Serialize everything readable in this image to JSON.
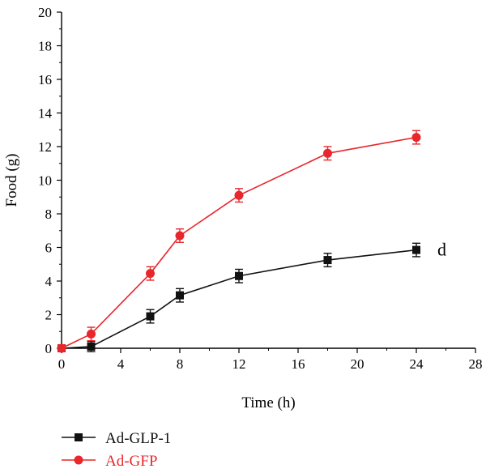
{
  "chart_data": {
    "type": "line",
    "title": "",
    "xlabel": "Time (h)",
    "ylabel": "Food (g)",
    "xlim": [
      0,
      28
    ],
    "ylim": [
      0,
      20
    ],
    "xticks": [
      0,
      4,
      8,
      12,
      16,
      20,
      24,
      28
    ],
    "yticks": [
      0,
      2,
      4,
      6,
      8,
      10,
      12,
      14,
      16,
      18,
      20
    ],
    "grid": false,
    "legend_position": "bottom-left, below plot",
    "x": [
      0,
      2,
      6,
      8,
      12,
      18,
      24
    ],
    "series": [
      {
        "name": "Ad-GLP-1",
        "color": "#111111",
        "marker": "square",
        "values": [
          0.0,
          0.1,
          1.9,
          3.15,
          4.3,
          5.25,
          5.85
        ],
        "errors": [
          0.2,
          0.3,
          0.4,
          0.4,
          0.4,
          0.4,
          0.4
        ]
      },
      {
        "name": "Ad-GFP",
        "color": "#e8262b",
        "marker": "circle",
        "values": [
          0.0,
          0.85,
          4.45,
          6.7,
          9.1,
          11.6,
          12.55
        ],
        "errors": [
          0.2,
          0.4,
          0.4,
          0.4,
          0.4,
          0.4,
          0.4
        ]
      }
    ],
    "annotations": [
      {
        "text": "d",
        "x": 24,
        "y": 5.85
      }
    ]
  }
}
